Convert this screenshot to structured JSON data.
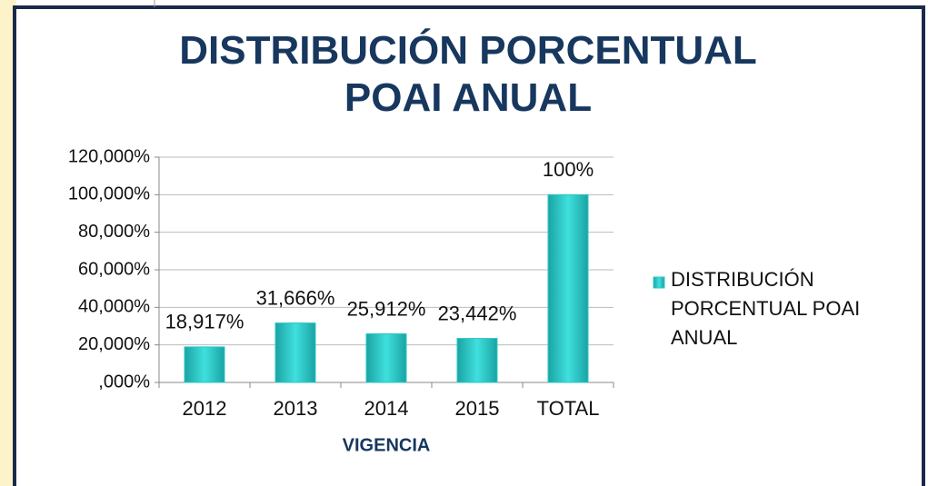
{
  "chart_data": {
    "type": "bar",
    "title": "DISTRIBUCIÓN PORCENTUAL POAI ANUAL",
    "x_label": "VIGENCIA",
    "categories": [
      "2012",
      "2013",
      "2014",
      "2015",
      "TOTAL"
    ],
    "series": [
      {
        "name": "DISTRIBUCIÓN PORCENTUAL POAI ANUAL",
        "color": "#2ec6c6",
        "values": [
          18.917,
          31.666,
          25.912,
          23.442,
          100
        ],
        "value_labels": [
          "18,917%",
          "31,666%",
          "25,912%",
          "23,442%",
          "100%"
        ]
      }
    ],
    "ylim": [
      0,
      120
    ],
    "yticks": [
      {
        "value": 0,
        "label": ",000%"
      },
      {
        "value": 20,
        "label": "20,000%"
      },
      {
        "value": 40,
        "label": "40,000%"
      },
      {
        "value": 60,
        "label": "60,000%"
      },
      {
        "value": 80,
        "label": "80,000%"
      },
      {
        "value": 100,
        "label": "100,000%"
      },
      {
        "value": 120,
        "label": "120,000%"
      }
    ],
    "grid": true,
    "legend": "right"
  }
}
